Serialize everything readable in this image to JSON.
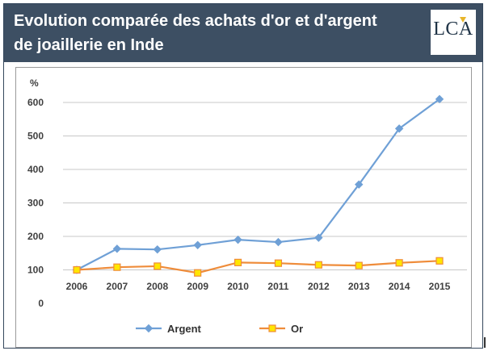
{
  "header": {
    "title_line1": "Evolution comparée des achats d'or et d'argent",
    "title_line2": "de joaillerie en Inde",
    "logo_text": "LCA"
  },
  "colors": {
    "header_bg": "#3d4f63",
    "argent": "#6fa0d6",
    "or_line": "#ef8c3a",
    "or_marker_fill": "#ffe600",
    "grid": "#c8c8c8"
  },
  "chart_data": {
    "type": "line",
    "title": "Evolution comparée des achats d'or et d'argent de joaillerie en Inde",
    "ylabel": "%",
    "xlabel": "",
    "categories": [
      "2006",
      "2007",
      "2008",
      "2009",
      "2010",
      "2011",
      "2012",
      "2013",
      "2014",
      "2015"
    ],
    "series": [
      {
        "name": "Argent",
        "color": "#6fa0d6",
        "marker": "diamond",
        "values": [
          100,
          163,
          161,
          174,
          190,
          183,
          196,
          355,
          522,
          610
        ]
      },
      {
        "name": "Or",
        "color": "#ef8c3a",
        "marker": "square",
        "values": [
          100,
          108,
          111,
          91,
          122,
          120,
          115,
          113,
          121,
          127
        ]
      }
    ],
    "ylim": [
      0,
      600
    ],
    "yticks": [
      0,
      100,
      200,
      300,
      400,
      500,
      600
    ],
    "grid": true,
    "legend_position": "bottom"
  }
}
